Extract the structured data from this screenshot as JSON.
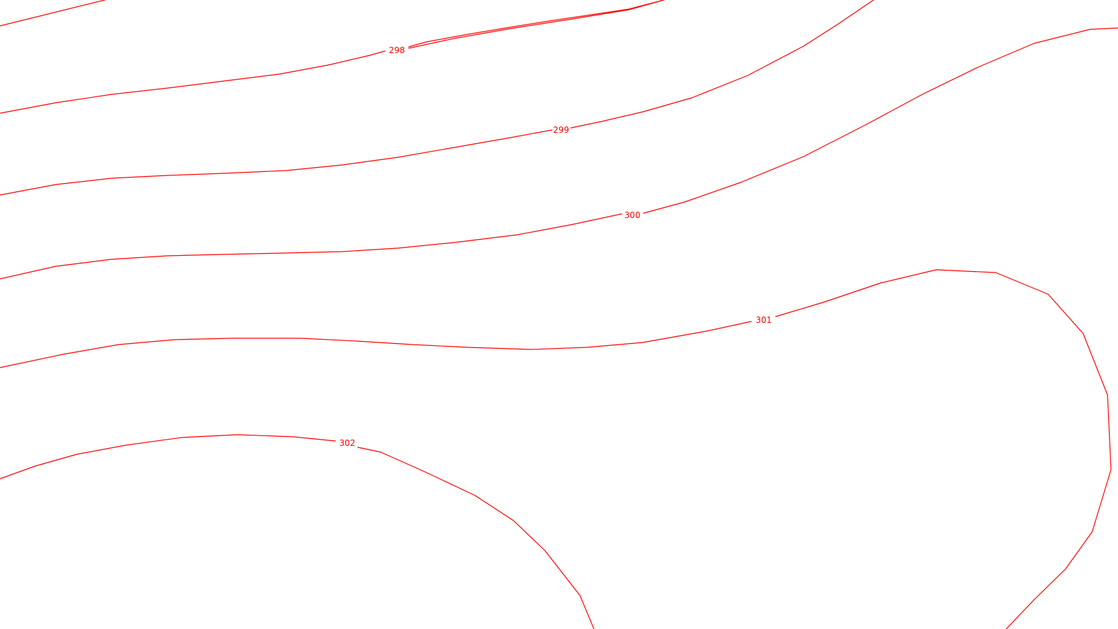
{
  "map": {
    "line_color": "#ff0000",
    "background_color": "#ffffff",
    "contours": [
      {
        "id": "top-edge",
        "label": ""
      },
      {
        "id": "c298",
        "label": "298"
      },
      {
        "id": "c299",
        "label": "299"
      },
      {
        "id": "c300",
        "label": "300"
      },
      {
        "id": "c301",
        "label": "301"
      },
      {
        "id": "c302",
        "label": "302"
      }
    ]
  }
}
